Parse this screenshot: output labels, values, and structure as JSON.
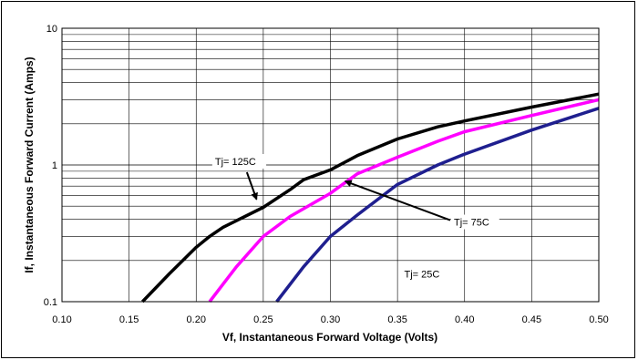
{
  "chart_data": {
    "type": "line",
    "title": "",
    "xlabel": "Vf, Instantaneous Forward  Voltage (Volts)",
    "ylabel": "If, Instantaneous Forward Current (Amps)",
    "xlim": [
      0.1,
      0.5
    ],
    "ylim": [
      0.1,
      10
    ],
    "yscale": "log",
    "grid": true,
    "x_ticks": [
      "0.10",
      "0.15",
      "0.20",
      "0.25",
      "0.30",
      "0.35",
      "0.40",
      "0.45",
      "0.50"
    ],
    "y_ticks": [
      "0.1",
      "1",
      "10"
    ],
    "series": [
      {
        "name": "Tj= 125C",
        "color": "#000000",
        "x": [
          0.16,
          0.18,
          0.2,
          0.21,
          0.22,
          0.25,
          0.27,
          0.28,
          0.3,
          0.32,
          0.35,
          0.38,
          0.4,
          0.45,
          0.5
        ],
        "y": [
          0.1,
          0.16,
          0.25,
          0.3,
          0.35,
          0.49,
          0.66,
          0.78,
          0.92,
          1.17,
          1.55,
          1.9,
          2.1,
          2.65,
          3.3
        ]
      },
      {
        "name": "Tj= 75C",
        "color": "#ff00ff",
        "x": [
          0.21,
          0.23,
          0.25,
          0.27,
          0.3,
          0.32,
          0.35,
          0.38,
          0.4,
          0.45,
          0.5
        ],
        "y": [
          0.1,
          0.18,
          0.3,
          0.42,
          0.62,
          0.86,
          1.14,
          1.49,
          1.75,
          2.3,
          3.0
        ]
      },
      {
        "name": "Tj= 25C",
        "color": "#1f1f8f",
        "x": [
          0.26,
          0.28,
          0.3,
          0.32,
          0.35,
          0.38,
          0.4,
          0.45,
          0.5
        ],
        "y": [
          0.1,
          0.18,
          0.3,
          0.43,
          0.72,
          1.0,
          1.2,
          1.8,
          2.6
        ]
      }
    ],
    "annotations": [
      {
        "text": "Tj= 125C",
        "x": 0.214,
        "y": 1.0,
        "arrow_to": [
          0.245,
          0.56
        ]
      },
      {
        "text": "Tj= 75C",
        "x": 0.392,
        "y": 0.36,
        "arrow_to": [
          0.311,
          0.76
        ]
      },
      {
        "text": "Tj= 25C",
        "x": 0.355,
        "y": 0.15
      }
    ]
  }
}
